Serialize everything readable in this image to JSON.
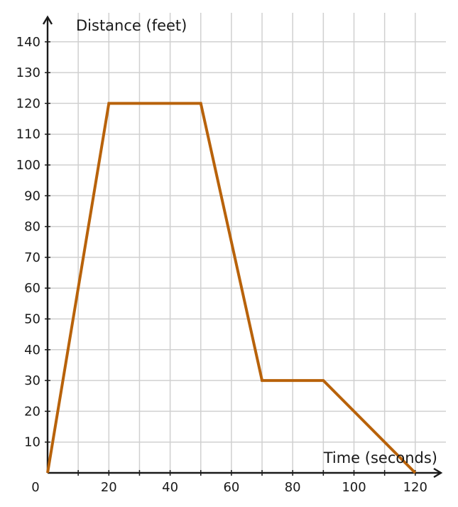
{
  "chart_data": {
    "type": "line",
    "xlabel": "Time (seconds)",
    "ylabel": "Distance (feet)",
    "xlim": [
      0,
      130
    ],
    "ylim": [
      0,
      140
    ],
    "x_ticks": [
      0,
      10,
      20,
      30,
      40,
      50,
      60,
      70,
      80,
      90,
      100,
      110,
      120
    ],
    "y_ticks": [
      10,
      20,
      30,
      40,
      50,
      60,
      70,
      80,
      90,
      100,
      110,
      120,
      130,
      140
    ],
    "x_tick_labels": [
      {
        "value": 0,
        "label": "0"
      },
      {
        "value": 20,
        "label": "20"
      },
      {
        "value": 40,
        "label": "40"
      },
      {
        "value": 60,
        "label": "60"
      },
      {
        "value": 80,
        "label": "80"
      },
      {
        "value": 100,
        "label": "100"
      },
      {
        "value": 120,
        "label": "120"
      }
    ],
    "y_tick_labels": [
      {
        "value": 10,
        "label": "10"
      },
      {
        "value": 20,
        "label": "20"
      },
      {
        "value": 30,
        "label": "30"
      },
      {
        "value": 40,
        "label": "40"
      },
      {
        "value": 50,
        "label": "50"
      },
      {
        "value": 60,
        "label": "60"
      },
      {
        "value": 70,
        "label": "70"
      },
      {
        "value": 80,
        "label": "80"
      },
      {
        "value": 90,
        "label": "90"
      },
      {
        "value": 100,
        "label": "100"
      },
      {
        "value": 110,
        "label": "110"
      },
      {
        "value": 120,
        "label": "120"
      },
      {
        "value": 130,
        "label": "130"
      },
      {
        "value": 140,
        "label": "140"
      }
    ],
    "grid": true,
    "legend": "none",
    "series": [
      {
        "color": "#b8620a",
        "points": [
          {
            "x": 0,
            "y": 0
          },
          {
            "x": 20,
            "y": 120
          },
          {
            "x": 50,
            "y": 120
          },
          {
            "x": 70,
            "y": 30
          },
          {
            "x": 90,
            "y": 30
          },
          {
            "x": 120,
            "y": 0
          }
        ]
      }
    ]
  }
}
